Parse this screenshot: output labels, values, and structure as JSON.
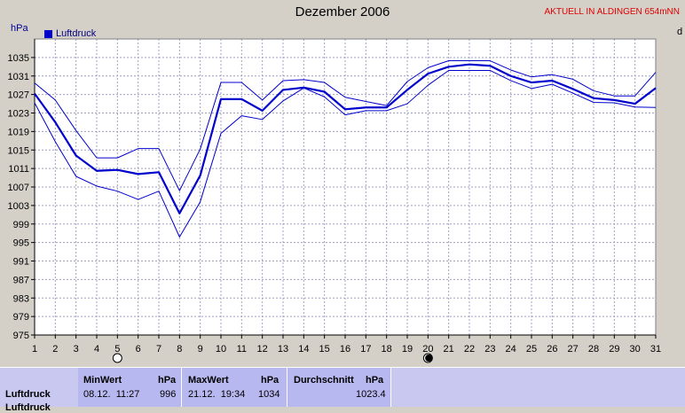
{
  "header": {
    "title": "Dezember 2006",
    "aktuell": "AKTUELL IN ALDINGEN 654mNN",
    "unit": "hPa",
    "right_mark": "d"
  },
  "legend": {
    "label": "Luftdruck",
    "color": "#0000cc"
  },
  "colors": {
    "plot_bg": "#ffffff",
    "grid": "#a0a0c0",
    "line": "#0000cc",
    "axis": "#000000"
  },
  "chart_data": {
    "type": "line",
    "title": "Dezember 2006",
    "ylabel": "hPa",
    "x": [
      1,
      2,
      3,
      4,
      5,
      6,
      7,
      8,
      9,
      10,
      11,
      12,
      13,
      14,
      15,
      16,
      17,
      18,
      19,
      20,
      21,
      22,
      23,
      24,
      25,
      26,
      27,
      28,
      29,
      30,
      31
    ],
    "ylim": [
      975,
      1039
    ],
    "yticks": [
      975,
      979,
      983,
      987,
      991,
      995,
      999,
      1003,
      1007,
      1011,
      1015,
      1019,
      1023,
      1027,
      1031,
      1035
    ],
    "grid": true,
    "legend_position": "top-left",
    "series": [
      {
        "name": "Luftdruck",
        "role": "mean",
        "values": [
          1027.2,
          1021.0,
          1013.8,
          1010.5,
          1010.7,
          1009.8,
          1010.2,
          1001.3,
          1009.5,
          1026.0,
          1026.0,
          1023.5,
          1028.0,
          1028.5,
          1027.6,
          1023.8,
          1024.2,
          1024.2,
          1028.0,
          1031.5,
          1033.0,
          1033.5,
          1033.2,
          1031.0,
          1029.6,
          1030.0,
          1028.2,
          1026.2,
          1025.8,
          1025.0,
          1028.4
        ]
      },
      {
        "role": "max",
        "values": [
          1029.5,
          1025.8,
          1019.2,
          1013.3,
          1013.3,
          1015.3,
          1015.3,
          1006.2,
          1015.2,
          1029.6,
          1029.6,
          1025.8,
          1030.0,
          1030.2,
          1029.6,
          1026.4,
          1025.5,
          1024.6,
          1029.8,
          1032.8,
          1034.3,
          1034.3,
          1034.3,
          1032.3,
          1030.8,
          1031.3,
          1030.3,
          1027.8,
          1026.7,
          1026.7,
          1031.8
        ]
      },
      {
        "role": "min",
        "values": [
          1025.2,
          1016.8,
          1009.3,
          1007.2,
          1006.1,
          1004.3,
          1006.1,
          996.2,
          1003.8,
          1018.6,
          1022.4,
          1021.6,
          1025.6,
          1028.4,
          1026.5,
          1022.6,
          1023.5,
          1023.5,
          1025.0,
          1029.0,
          1032.2,
          1032.2,
          1032.2,
          1030.0,
          1028.3,
          1029.2,
          1027.3,
          1025.3,
          1025.2,
          1024.3,
          1024.2
        ]
      }
    ]
  },
  "moon_markers": [
    {
      "day": 5,
      "phase": "full-moon"
    },
    {
      "day": 20,
      "phase": "new-moon"
    }
  ],
  "stats": {
    "row_label": "Luftdruck",
    "row_label_2": "Luftdruck",
    "min": {
      "header": "MinWert",
      "unit": "hPa",
      "date": "08.12.  11:27",
      "value": "996"
    },
    "max": {
      "header": "MaxWert",
      "unit": "hPa",
      "date": "21.12.  19:34",
      "value": "1034"
    },
    "avg": {
      "header": "Durchschnitt",
      "unit": "hPa",
      "value": "1023.4"
    }
  }
}
